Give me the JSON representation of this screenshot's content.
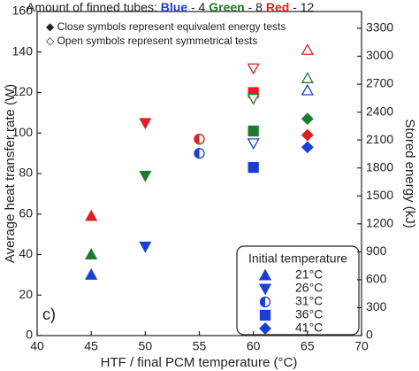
{
  "chart_data": {
    "type": "scatter",
    "header": [
      {
        "text": "Amount of finned tubes: ",
        "color": "#222"
      },
      {
        "text": "Blue",
        "color": "#1a3fd6"
      },
      {
        "text": " - 4 ",
        "color": "#222"
      },
      {
        "text": "Green",
        "color": "#1e7a2e"
      },
      {
        "text": " - 8 ",
        "color": "#222"
      },
      {
        "text": "Red",
        "color": "#e02020"
      },
      {
        "text": " - 12",
        "color": "#222"
      }
    ],
    "notes": [
      "◆ Close symbols represent equivalent energy tests",
      "◇ Open symbols represent symmetrical tests"
    ],
    "panel_label": "c)",
    "xlabel": "HTF / final PCM temperature (°C)",
    "ylabel": "Average heat transfer rate (W)",
    "y2label": "Stored energy (kJ)",
    "xlim": [
      40,
      70
    ],
    "xticks": [
      40,
      45,
      50,
      55,
      60,
      65,
      70
    ],
    "ylim": [
      0,
      160
    ],
    "yticks": [
      0,
      20,
      40,
      60,
      80,
      100,
      120,
      140,
      160
    ],
    "y2lim": [
      0,
      3480
    ],
    "y2ticks": [
      0,
      300,
      600,
      900,
      1200,
      1500,
      1800,
      2100,
      2400,
      2700,
      3000,
      3300
    ],
    "legend": {
      "title": "Initial temperature",
      "color": "#1a3fd6",
      "entries": [
        {
          "label": "21°C",
          "marker": "triangle-up"
        },
        {
          "label": "26°C",
          "marker": "triangle-down"
        },
        {
          "label": "31°C",
          "marker": "half-circle"
        },
        {
          "label": "36°C",
          "marker": "square"
        },
        {
          "label": "41°C",
          "marker": "diamond"
        }
      ]
    },
    "series": [
      {
        "color": "#1a3fd6",
        "filled": true,
        "x": [
          45,
          50,
          55,
          60,
          65
        ],
        "values": [
          30,
          44,
          90,
          83,
          93
        ],
        "markers": [
          "triangle-up",
          "triangle-down",
          "half-circle",
          "square",
          "diamond"
        ]
      },
      {
        "color": "#1e7a2e",
        "filled": true,
        "x": [
          45,
          50,
          55,
          60,
          65
        ],
        "values": [
          40,
          79,
          97,
          101,
          107
        ],
        "markers": [
          "triangle-up",
          "triangle-down",
          "half-circle",
          "square",
          "diamond"
        ]
      },
      {
        "color": "#e02020",
        "filled": true,
        "x": [
          45,
          50,
          55,
          60,
          65
        ],
        "values": [
          59,
          105,
          97,
          120,
          99
        ],
        "markers": [
          "triangle-up",
          "triangle-down",
          "half-circle",
          "square",
          "diamond"
        ]
      },
      {
        "color": "#1a3fd6",
        "filled": false,
        "x": [
          60,
          65
        ],
        "values": [
          95,
          121
        ],
        "markers": [
          "triangle-down",
          "triangle-up"
        ]
      },
      {
        "color": "#1e7a2e",
        "filled": false,
        "x": [
          60,
          65
        ],
        "values": [
          117,
          127
        ],
        "markers": [
          "triangle-down",
          "triangle-up"
        ]
      },
      {
        "color": "#e02020",
        "filled": false,
        "x": [
          60,
          65
        ],
        "values": [
          132,
          141
        ],
        "markers": [
          "triangle-down",
          "triangle-up"
        ]
      }
    ]
  }
}
